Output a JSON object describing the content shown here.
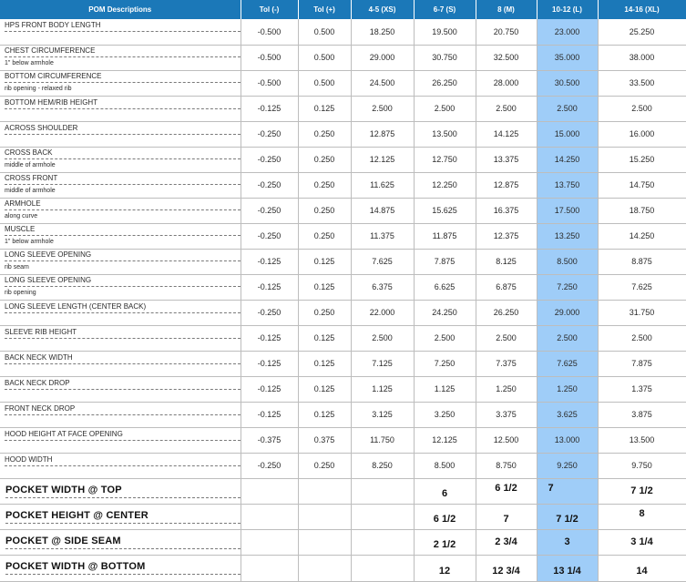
{
  "header": [
    "POM Descriptions",
    "Tol (-)",
    "Tol (+)",
    "4-5 (XS)",
    "6-7 (S)",
    "8 (M)",
    "10-12 (L)",
    "14-16 (XL)"
  ],
  "rows": [
    {
      "name": "HPS FRONT BODY LENGTH",
      "sub": "",
      "values": [
        "-0.500",
        "0.500",
        "18.250",
        "19.500",
        "20.750",
        "23.000",
        "25.250"
      ]
    },
    {
      "name": "CHEST CIRCUMFERENCE",
      "sub": "1\" below armhole",
      "values": [
        "-0.500",
        "0.500",
        "29.000",
        "30.750",
        "32.500",
        "35.000",
        "38.000"
      ]
    },
    {
      "name": "BOTTOM CIRCUMFERENCE",
      "sub": "rib opening - relaxed rib",
      "values": [
        "-0.500",
        "0.500",
        "24.500",
        "26.250",
        "28.000",
        "30.500",
        "33.500"
      ]
    },
    {
      "name": "BOTTOM HEM/RIB HEIGHT",
      "sub": "",
      "values": [
        "-0.125",
        "0.125",
        "2.500",
        "2.500",
        "2.500",
        "2.500",
        "2.500"
      ]
    },
    {
      "name": "ACROSS SHOULDER",
      "sub": "",
      "values": [
        "-0.250",
        "0.250",
        "12.875",
        "13.500",
        "14.125",
        "15.000",
        "16.000"
      ]
    },
    {
      "name": "CROSS BACK",
      "sub": "middle of armhole",
      "values": [
        "-0.250",
        "0.250",
        "12.125",
        "12.750",
        "13.375",
        "14.250",
        "15.250"
      ]
    },
    {
      "name": "CROSS FRONT",
      "sub": "middle of armhole",
      "values": [
        "-0.250",
        "0.250",
        "11.625",
        "12.250",
        "12.875",
        "13.750",
        "14.750"
      ]
    },
    {
      "name": "ARMHOLE",
      "sub": "along curve",
      "values": [
        "-0.250",
        "0.250",
        "14.875",
        "15.625",
        "16.375",
        "17.500",
        "18.750"
      ]
    },
    {
      "name": "MUSCLE",
      "sub": "1\" below armhole",
      "values": [
        "-0.250",
        "0.250",
        "11.375",
        "11.875",
        "12.375",
        "13.250",
        "14.250"
      ]
    },
    {
      "name": "LONG SLEEVE OPENING",
      "sub": "rib seam",
      "values": [
        "-0.125",
        "0.125",
        "7.625",
        "7.875",
        "8.125",
        "8.500",
        "8.875"
      ]
    },
    {
      "name": "LONG SLEEVE OPENING",
      "sub": "rib opening",
      "values": [
        "-0.125",
        "0.125",
        "6.375",
        "6.625",
        "6.875",
        "7.250",
        "7.625"
      ]
    },
    {
      "name": "LONG SLEEVE LENGTH (CENTER BACK)",
      "sub": "",
      "values": [
        "-0.250",
        "0.250",
        "22.000",
        "24.250",
        "26.250",
        "29.000",
        "31.750"
      ]
    },
    {
      "name": "SLEEVE RIB HEIGHT",
      "sub": "",
      "values": [
        "-0.125",
        "0.125",
        "2.500",
        "2.500",
        "2.500",
        "2.500",
        "2.500"
      ]
    },
    {
      "name": "BACK NECK WIDTH",
      "sub": "",
      "values": [
        "-0.125",
        "0.125",
        "7.125",
        "7.250",
        "7.375",
        "7.625",
        "7.875"
      ]
    },
    {
      "name": "BACK NECK DROP",
      "sub": "",
      "values": [
        "-0.125",
        "0.125",
        "1.125",
        "1.125",
        "1.250",
        "1.250",
        "1.375"
      ]
    },
    {
      "name": "FRONT NECK DROP",
      "sub": "",
      "values": [
        "-0.125",
        "0.125",
        "3.125",
        "3.250",
        "3.375",
        "3.625",
        "3.875"
      ]
    },
    {
      "name": "HOOD HEIGHT AT FACE OPENING",
      "sub": "",
      "values": [
        "-0.375",
        "0.375",
        "11.750",
        "12.125",
        "12.500",
        "13.000",
        "13.500"
      ]
    },
    {
      "name": "HOOD WIDTH",
      "sub": "",
      "values": [
        "-0.250",
        "0.250",
        "8.250",
        "8.500",
        "8.750",
        "9.250",
        "9.750"
      ]
    }
  ],
  "pocket_rows": [
    {
      "name": "POCKET WIDTH @ TOP",
      "values": [
        "",
        "",
        "",
        "6",
        "6 1/2",
        "7",
        "7 1/2"
      ]
    },
    {
      "name": "POCKET HEIGHT @ CENTER",
      "values": [
        "",
        "",
        "",
        "6 1/2",
        "7",
        "7 1/2",
        "8"
      ]
    },
    {
      "name": "POCKET @ SIDE SEAM",
      "values": [
        "",
        "",
        "",
        "2 1/2",
        "2 3/4",
        "3",
        "3 1/4"
      ]
    },
    {
      "name": "POCKET WIDTH @ BOTTOM",
      "values": [
        "",
        "",
        "",
        "12",
        "12 3/4",
        "13 1/4",
        "14"
      ]
    }
  ],
  "highlight_color": "#9fcdf8",
  "header_color": "#1b78b8"
}
